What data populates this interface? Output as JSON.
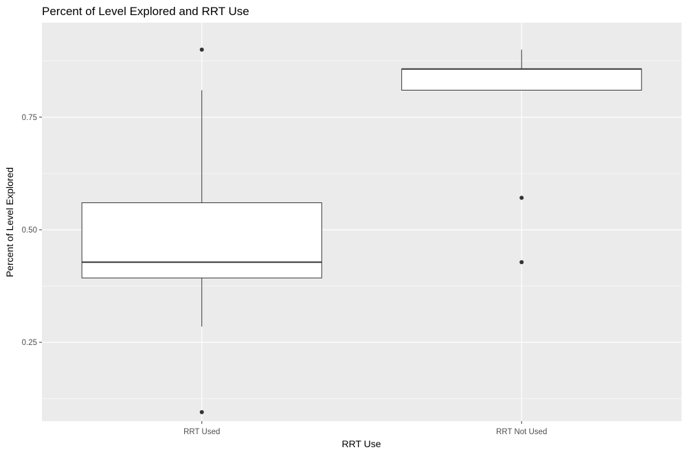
{
  "chart_data": {
    "type": "boxplot",
    "title": "Percent of Level Explored and RRT Use",
    "xlabel": "RRT Use",
    "ylabel": "Percent of Level Explored",
    "categories": [
      "RRT Used",
      "RRT Not Used"
    ],
    "ylim": [
      0.075,
      0.96
    ],
    "yticks": [
      0.25,
      0.5,
      0.75
    ],
    "ytick_labels": [
      "0.25",
      "0.50",
      "0.75"
    ],
    "y_minor_ticks": [
      0.125,
      0.375,
      0.625,
      0.875
    ],
    "boxes": [
      {
        "category": "RRT Used",
        "whisker_low": 0.285,
        "q1": 0.393,
        "median": 0.428,
        "q3": 0.56,
        "whisker_high": 0.81,
        "outliers": [
          0.095,
          0.9
        ]
      },
      {
        "category": "RRT Not Used",
        "whisker_low": 0.81,
        "q1": 0.81,
        "median": 0.857,
        "q3": 0.857,
        "whisker_high": 0.9,
        "outliers": [
          0.428,
          0.571
        ]
      }
    ],
    "colors": {
      "panel": "#ebebeb",
      "grid": "#ffffff",
      "box_fill": "#ffffff",
      "box_line": "#333333",
      "outlier": "#333333"
    },
    "grid": true,
    "legend": "none"
  }
}
